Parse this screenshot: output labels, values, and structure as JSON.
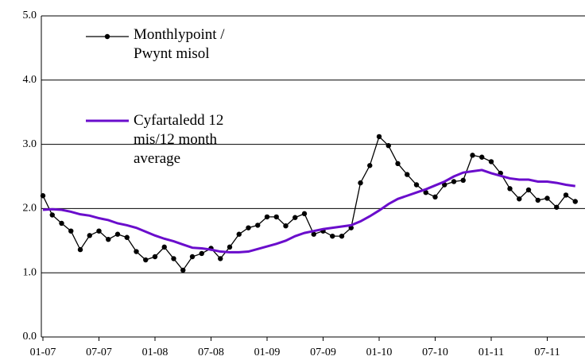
{
  "chart_data": {
    "type": "line",
    "categories": [
      "01-07",
      null,
      null,
      null,
      null,
      null,
      "07-07",
      null,
      null,
      null,
      null,
      null,
      "01-08",
      null,
      null,
      null,
      null,
      null,
      "07-08",
      null,
      null,
      null,
      null,
      null,
      "01-09",
      null,
      null,
      null,
      null,
      null,
      "07-09",
      null,
      null,
      null,
      null,
      null,
      "01-10",
      null,
      null,
      null,
      null,
      null,
      "07-10",
      null,
      null,
      null,
      null,
      null,
      "01-11",
      null,
      null,
      null,
      null,
      null,
      "07-11",
      null,
      null,
      null
    ],
    "series": [
      {
        "name": "Monthlypoint / Pwynt misol",
        "color": "#000000",
        "marker": true,
        "values": [
          2.2,
          1.9,
          1.77,
          1.65,
          1.36,
          1.58,
          1.65,
          1.52,
          1.6,
          1.55,
          1.33,
          1.2,
          1.25,
          1.4,
          1.22,
          1.04,
          1.25,
          1.3,
          1.38,
          1.22,
          1.4,
          1.6,
          1.7,
          1.74,
          1.87,
          1.87,
          1.73,
          1.86,
          1.92,
          1.6,
          1.65,
          1.57,
          1.57,
          1.7,
          2.4,
          2.67,
          3.12,
          2.98,
          2.7,
          2.53,
          2.37,
          2.25,
          2.18,
          2.37,
          2.42,
          2.44,
          2.83,
          2.8,
          2.73,
          2.55,
          2.31,
          2.15,
          2.29,
          2.13,
          2.16,
          2.02,
          2.21,
          2.11
        ]
      },
      {
        "name": "Cyfartaledd 12 mis/12 month average",
        "color": "#6a0dcc",
        "marker": false,
        "values": [
          1.98,
          1.99,
          1.98,
          1.95,
          1.91,
          1.89,
          1.85,
          1.82,
          1.77,
          1.74,
          1.7,
          1.64,
          1.58,
          1.53,
          1.49,
          1.44,
          1.39,
          1.38,
          1.36,
          1.33,
          1.32,
          1.32,
          1.33,
          1.37,
          1.41,
          1.45,
          1.5,
          1.57,
          1.62,
          1.65,
          1.68,
          1.7,
          1.72,
          1.74,
          1.8,
          1.88,
          1.97,
          2.07,
          2.15,
          2.2,
          2.25,
          2.3,
          2.36,
          2.42,
          2.5,
          2.56,
          2.58,
          2.6,
          2.55,
          2.51,
          2.47,
          2.45,
          2.45,
          2.42,
          2.42,
          2.4,
          2.37,
          2.35
        ]
      }
    ],
    "ylim": [
      0,
      5
    ],
    "yticks": [
      {
        "value": 0,
        "label": "0.0"
      },
      {
        "value": 1,
        "label": "1.0"
      },
      {
        "value": 2,
        "label": "2.0"
      },
      {
        "value": 3,
        "label": "3.0"
      },
      {
        "value": 4,
        "label": "4.0"
      },
      {
        "value": 5,
        "label": "5.0"
      }
    ],
    "grid": true
  }
}
